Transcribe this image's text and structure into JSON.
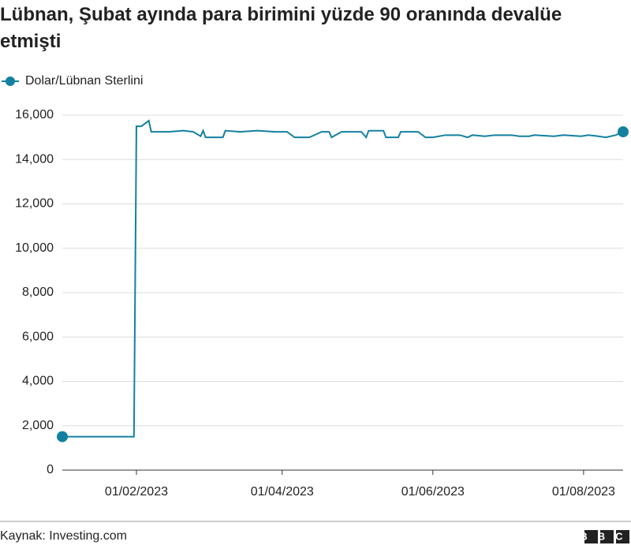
{
  "chart_data": {
    "type": "line",
    "title": "Lübnan, Şubat ayında para birimini yüzde 90 oranında devalüe etmişti",
    "source": "Kaynak: Investing.com",
    "logo": "BBC",
    "x": [
      "2023-01-02",
      "2023-01-31",
      "2023-02-01",
      "2023-02-03",
      "2023-02-06",
      "2023-02-07",
      "2023-02-14",
      "2023-02-20",
      "2023-02-24",
      "2023-02-27",
      "2023-02-28",
      "2023-03-01",
      "2023-03-08",
      "2023-03-09",
      "2023-03-15",
      "2023-03-22",
      "2023-03-29",
      "2023-04-03",
      "2023-04-06",
      "2023-04-12",
      "2023-04-17",
      "2023-04-20",
      "2023-04-21",
      "2023-04-25",
      "2023-05-03",
      "2023-05-05",
      "2023-05-06",
      "2023-05-12",
      "2023-05-13",
      "2023-05-18",
      "2023-05-19",
      "2023-05-26",
      "2023-05-29",
      "2023-06-01",
      "2023-06-06",
      "2023-06-12",
      "2023-06-15",
      "2023-06-17",
      "2023-06-22",
      "2023-06-26",
      "2023-07-03",
      "2023-07-06",
      "2023-07-10",
      "2023-07-12",
      "2023-07-20",
      "2023-07-24",
      "2023-07-31",
      "2023-08-03",
      "2023-08-07",
      "2023-08-10",
      "2023-08-14",
      "2023-08-17"
    ],
    "series": [
      {
        "name": "Dolar/Lübnan Sterlini",
        "color": "#1380a1",
        "values": [
          1507.5,
          1507.5,
          15500,
          15500,
          15750,
          15250,
          15250,
          15300,
          15250,
          15050,
          15300,
          15000,
          15000,
          15300,
          15250,
          15300,
          15250,
          15250,
          15000,
          15000,
          15250,
          15250,
          15000,
          15250,
          15250,
          15000,
          15300,
          15300,
          15000,
          15000,
          15250,
          15250,
          15000,
          15000,
          15100,
          15100,
          15000,
          15100,
          15050,
          15100,
          15100,
          15050,
          15050,
          15100,
          15050,
          15100,
          15050,
          15100,
          15050,
          15000,
          15100,
          15250
        ]
      }
    ],
    "xlim": [
      "2023-01-02",
      "2023-08-17"
    ],
    "xticks": [
      {
        "value": "2023-02-01",
        "label": "01/02/2023"
      },
      {
        "value": "2023-04-01",
        "label": "01/04/2023"
      },
      {
        "value": "2023-06-01",
        "label": "01/06/2023"
      },
      {
        "value": "2023-08-01",
        "label": "01/08/2023"
      }
    ],
    "ylim": [
      0,
      16000
    ],
    "yticks": [
      0,
      {
        "value": 2000,
        "label": "2,000"
      },
      {
        "value": 4000,
        "label": "4,000"
      },
      {
        "value": 6000,
        "label": "6,000"
      },
      {
        "value": 8000,
        "label": "8,000"
      },
      {
        "value": 10000,
        "label": "10,000"
      },
      {
        "value": 12000,
        "label": "12,000"
      },
      {
        "value": 14000,
        "label": "14,000"
      },
      {
        "value": 16000,
        "label": "16,000"
      }
    ],
    "grid": true
  }
}
